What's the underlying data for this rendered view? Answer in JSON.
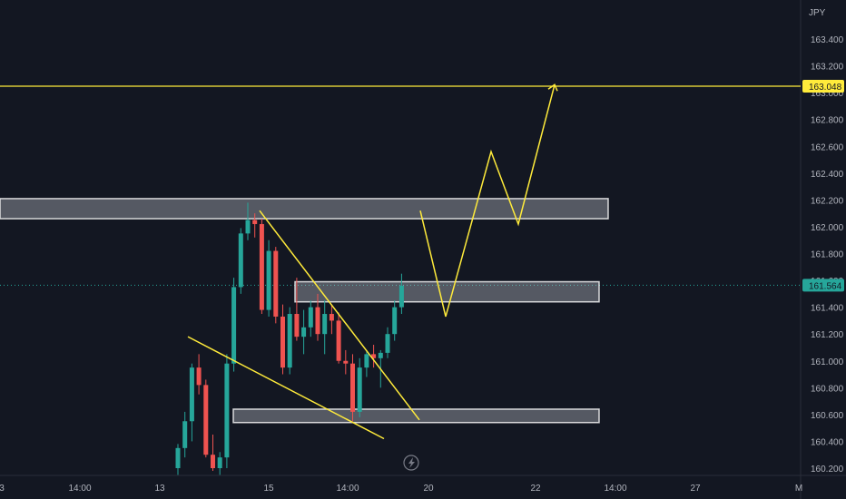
{
  "currency_label": "JPY",
  "chart_data": {
    "type": "candlestick",
    "ylim": [
      160.15,
      163.6
    ],
    "y_ticks": [
      "163.400",
      "163.200",
      "163.000",
      "162.800",
      "162.600",
      "162.400",
      "162.200",
      "162.000",
      "161.800",
      "161.600",
      "161.400",
      "161.200",
      "161.000",
      "160.800",
      "160.600",
      "160.400",
      "160.200"
    ],
    "x_ticks": [
      "3",
      "14:00",
      "13",
      "15",
      "14:00",
      "20",
      "22",
      "14:00",
      "27",
      "M"
    ],
    "current_price": "161.564",
    "target_price": "163.048",
    "colors": {
      "up": "#26a69a",
      "down": "#ef5350",
      "drawing": "#ffeb3b",
      "zone_fill": "#d1d4dc",
      "zone_border": "#ffffff"
    },
    "candles": [
      {
        "o": 160.2,
        "h": 160.38,
        "l": 160.15,
        "c": 160.35
      },
      {
        "o": 160.35,
        "h": 160.62,
        "l": 160.28,
        "c": 160.55
      },
      {
        "o": 160.55,
        "h": 160.98,
        "l": 160.4,
        "c": 160.95
      },
      {
        "o": 160.95,
        "h": 161.05,
        "l": 160.75,
        "c": 160.82
      },
      {
        "o": 160.82,
        "h": 160.86,
        "l": 160.28,
        "c": 160.3
      },
      {
        "o": 160.3,
        "h": 160.45,
        "l": 160.18,
        "c": 160.2
      },
      {
        "o": 160.2,
        "h": 160.32,
        "l": 160.15,
        "c": 160.28
      },
      {
        "o": 160.28,
        "h": 161.05,
        "l": 160.2,
        "c": 160.98
      },
      {
        "o": 160.98,
        "h": 161.62,
        "l": 160.92,
        "c": 161.55
      },
      {
        "o": 161.55,
        "h": 161.99,
        "l": 161.5,
        "c": 161.95
      },
      {
        "o": 161.95,
        "h": 162.18,
        "l": 161.9,
        "c": 162.05
      },
      {
        "o": 162.05,
        "h": 162.1,
        "l": 161.92,
        "c": 162.02
      },
      {
        "o": 162.02,
        "h": 162.06,
        "l": 161.35,
        "c": 161.38
      },
      {
        "o": 161.38,
        "h": 161.9,
        "l": 161.33,
        "c": 161.82
      },
      {
        "o": 161.82,
        "h": 161.85,
        "l": 161.28,
        "c": 161.33
      },
      {
        "o": 161.33,
        "h": 161.42,
        "l": 160.9,
        "c": 160.95
      },
      {
        "o": 160.95,
        "h": 161.4,
        "l": 160.9,
        "c": 161.35
      },
      {
        "o": 161.35,
        "h": 161.62,
        "l": 161.15,
        "c": 161.18
      },
      {
        "o": 161.18,
        "h": 161.38,
        "l": 161.05,
        "c": 161.25
      },
      {
        "o": 161.25,
        "h": 161.45,
        "l": 161.18,
        "c": 161.4
      },
      {
        "o": 161.4,
        "h": 161.5,
        "l": 161.15,
        "c": 161.2
      },
      {
        "o": 161.2,
        "h": 161.45,
        "l": 161.05,
        "c": 161.35
      },
      {
        "o": 161.35,
        "h": 161.42,
        "l": 161.2,
        "c": 161.3
      },
      {
        "o": 161.3,
        "h": 161.36,
        "l": 160.98,
        "c": 161.0
      },
      {
        "o": 161.0,
        "h": 161.08,
        "l": 160.9,
        "c": 160.98
      },
      {
        "o": 160.98,
        "h": 161.05,
        "l": 160.55,
        "c": 160.62
      },
      {
        "o": 160.62,
        "h": 161.02,
        "l": 160.58,
        "c": 160.95
      },
      {
        "o": 160.95,
        "h": 161.08,
        "l": 160.88,
        "c": 161.05
      },
      {
        "o": 161.05,
        "h": 161.12,
        "l": 160.95,
        "c": 161.02
      },
      {
        "o": 161.02,
        "h": 161.08,
        "l": 160.8,
        "c": 161.06
      },
      {
        "o": 161.06,
        "h": 161.25,
        "l": 161.02,
        "c": 161.2
      },
      {
        "o": 161.2,
        "h": 161.45,
        "l": 161.15,
        "c": 161.4
      },
      {
        "o": 161.4,
        "h": 161.65,
        "l": 161.35,
        "c": 161.56
      }
    ]
  }
}
